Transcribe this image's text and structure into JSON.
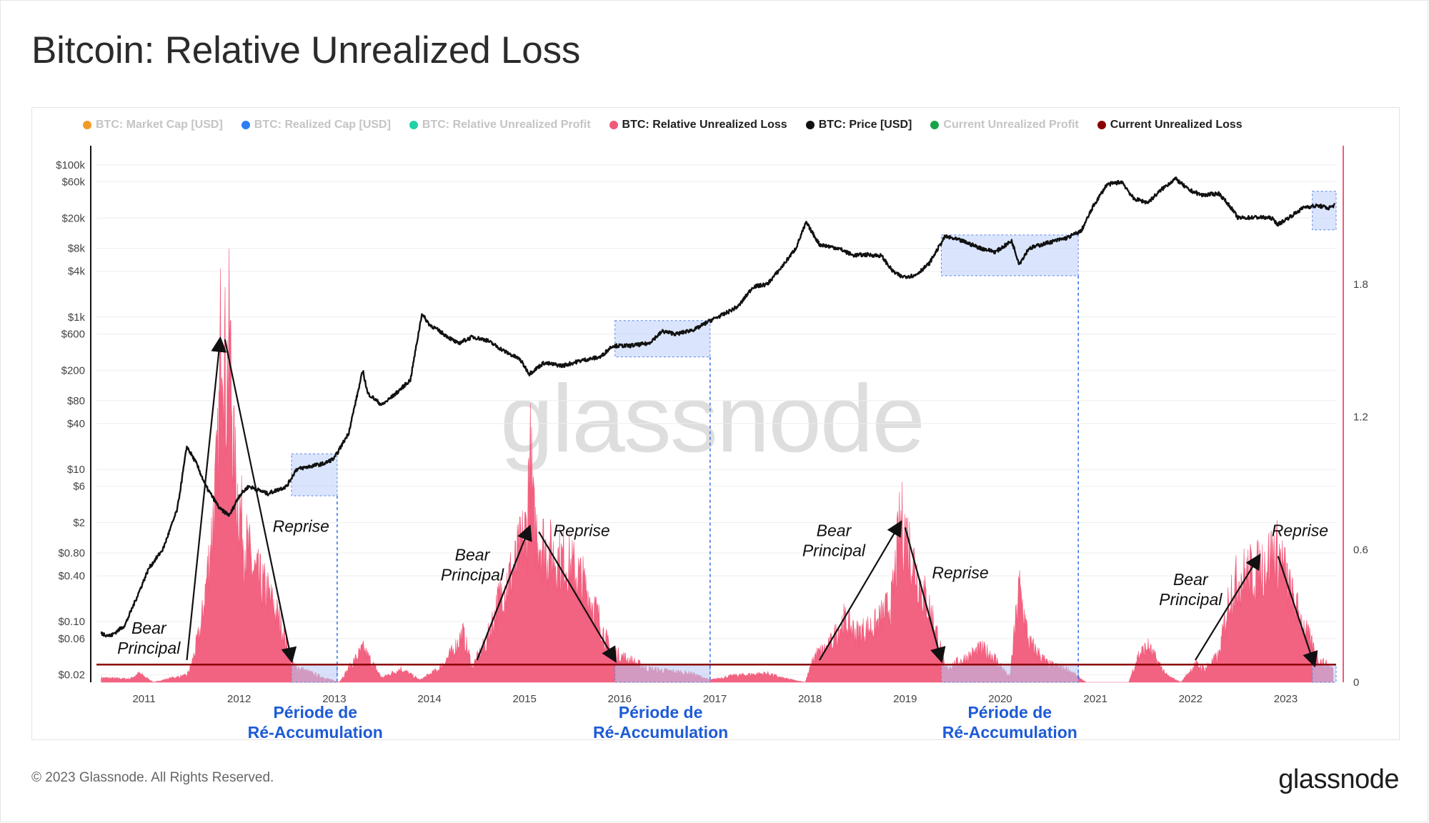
{
  "title": "Bitcoin: Relative Unrealized Loss",
  "legend": [
    {
      "label": "BTC: Market Cap [USD]",
      "color": "#f29a27",
      "active": false
    },
    {
      "label": "BTC: Realized Cap [USD]",
      "color": "#2e7cf6",
      "active": false
    },
    {
      "label": "BTC: Relative Unrealized Profit",
      "color": "#20d2a8",
      "active": false
    },
    {
      "label": "BTC: Relative Unrealized Loss",
      "color": "#f15a7a",
      "active": true
    },
    {
      "label": "BTC: Price [USD]",
      "color": "#111111",
      "active": true
    },
    {
      "label": "Current Unrealized Profit",
      "color": "#17a34a",
      "active": false
    },
    {
      "label": "Current Unrealized Loss",
      "color": "#8b0000",
      "active": true
    }
  ],
  "watermark": "glassnode",
  "footer": {
    "copyright": "© 2023 Glassnode. All Rights Reserved.",
    "logo": "glassnode"
  },
  "chart_data": {
    "type": "line",
    "title": "Bitcoin: Relative Unrealized Loss",
    "x_axis": {
      "ticks": [
        "2011",
        "2012",
        "2013",
        "2014",
        "2015",
        "2016",
        "2017",
        "2018",
        "2019",
        "2020",
        "2021",
        "2022",
        "2023"
      ],
      "range": [
        2010.5,
        2023.53
      ]
    },
    "y_left": {
      "scale": "log",
      "ticks": [
        {
          "label": "$100k",
          "value": 100000
        },
        {
          "label": "$60k",
          "value": 60000
        },
        {
          "label": "$20k",
          "value": 20000
        },
        {
          "label": "$8k",
          "value": 8000
        },
        {
          "label": "$4k",
          "value": 4000
        },
        {
          "label": "$1k",
          "value": 1000
        },
        {
          "label": "$600",
          "value": 600
        },
        {
          "label": "$200",
          "value": 200
        },
        {
          "label": "$80",
          "value": 80
        },
        {
          "label": "$40",
          "value": 40
        },
        {
          "label": "$10",
          "value": 10
        },
        {
          "label": "$6",
          "value": 6
        },
        {
          "label": "$2",
          "value": 2
        },
        {
          "label": "$0.80",
          "value": 0.8
        },
        {
          "label": "$0.40",
          "value": 0.4
        },
        {
          "label": "$0.10",
          "value": 0.1
        },
        {
          "label": "$0.06",
          "value": 0.06
        },
        {
          "label": "$0.02",
          "value": 0.02
        }
      ]
    },
    "y_right": {
      "scale": "linear",
      "ticks": [
        {
          "label": "0",
          "value": 0
        },
        {
          "label": "0.6",
          "value": 0.6
        },
        {
          "label": "1.2",
          "value": 1.2
        },
        {
          "label": "1.8",
          "value": 1.8
        }
      ],
      "range": [
        0,
        2.4
      ]
    },
    "series": [
      {
        "name": "BTC: Price [USD]",
        "axis": "left",
        "color": "#111111",
        "points": [
          [
            2010.55,
            0.07
          ],
          [
            2010.65,
            0.065
          ],
          [
            2010.8,
            0.09
          ],
          [
            2010.95,
            0.25
          ],
          [
            2011.05,
            0.5
          ],
          [
            2011.2,
            0.9
          ],
          [
            2011.35,
            3
          ],
          [
            2011.45,
            20
          ],
          [
            2011.55,
            12
          ],
          [
            2011.65,
            6
          ],
          [
            2011.8,
            3
          ],
          [
            2011.9,
            2.5
          ],
          [
            2012.0,
            4.5
          ],
          [
            2012.1,
            6
          ],
          [
            2012.3,
            4.8
          ],
          [
            2012.5,
            6
          ],
          [
            2012.6,
            10
          ],
          [
            2012.75,
            11
          ],
          [
            2012.9,
            12
          ],
          [
            2013.0,
            14
          ],
          [
            2013.15,
            30
          ],
          [
            2013.3,
            200
          ],
          [
            2013.35,
            100
          ],
          [
            2013.5,
            70
          ],
          [
            2013.65,
            100
          ],
          [
            2013.8,
            150
          ],
          [
            2013.92,
            1100
          ],
          [
            2014.0,
            800
          ],
          [
            2014.15,
            600
          ],
          [
            2014.3,
            450
          ],
          [
            2014.45,
            550
          ],
          [
            2014.6,
            500
          ],
          [
            2014.8,
            350
          ],
          [
            2014.95,
            280
          ],
          [
            2015.05,
            180
          ],
          [
            2015.2,
            250
          ],
          [
            2015.4,
            230
          ],
          [
            2015.6,
            270
          ],
          [
            2015.8,
            300
          ],
          [
            2015.92,
            420
          ],
          [
            2016.1,
            420
          ],
          [
            2016.3,
            450
          ],
          [
            2016.45,
            650
          ],
          [
            2016.6,
            600
          ],
          [
            2016.8,
            700
          ],
          [
            2016.95,
            900
          ],
          [
            2017.1,
            1100
          ],
          [
            2017.25,
            1400
          ],
          [
            2017.4,
            2500
          ],
          [
            2017.55,
            2700
          ],
          [
            2017.7,
            4500
          ],
          [
            2017.85,
            8000
          ],
          [
            2017.96,
            17500
          ],
          [
            2018.1,
            9000
          ],
          [
            2018.3,
            8000
          ],
          [
            2018.45,
            6500
          ],
          [
            2018.6,
            6600
          ],
          [
            2018.75,
            6400
          ],
          [
            2018.87,
            4000
          ],
          [
            2018.96,
            3400
          ],
          [
            2019.1,
            3500
          ],
          [
            2019.25,
            5000
          ],
          [
            2019.42,
            11500
          ],
          [
            2019.6,
            10000
          ],
          [
            2019.8,
            8000
          ],
          [
            2019.95,
            7200
          ],
          [
            2020.12,
            10000
          ],
          [
            2020.2,
            5000
          ],
          [
            2020.3,
            8000
          ],
          [
            2020.5,
            9500
          ],
          [
            2020.7,
            11000
          ],
          [
            2020.85,
            13500
          ],
          [
            2020.98,
            29000
          ],
          [
            2021.12,
            55000
          ],
          [
            2021.28,
            60000
          ],
          [
            2021.4,
            36000
          ],
          [
            2021.55,
            32000
          ],
          [
            2021.7,
            48000
          ],
          [
            2021.84,
            66000
          ],
          [
            2021.98,
            47000
          ],
          [
            2022.12,
            40000
          ],
          [
            2022.3,
            42000
          ],
          [
            2022.42,
            28000
          ],
          [
            2022.5,
            20000
          ],
          [
            2022.7,
            20500
          ],
          [
            2022.85,
            20000
          ],
          [
            2022.92,
            16500
          ],
          [
            2023.05,
            21000
          ],
          [
            2023.2,
            28000
          ],
          [
            2023.35,
            29000
          ],
          [
            2023.45,
            27000
          ],
          [
            2023.52,
            30000
          ]
        ]
      },
      {
        "name": "BTC: Relative Unrealized Loss",
        "axis": "right",
        "color": "#f15a7a",
        "points": [
          [
            2010.55,
            0.02
          ],
          [
            2010.85,
            0.015
          ],
          [
            2010.95,
            0.04
          ],
          [
            2011.1,
            0.0
          ],
          [
            2011.3,
            0.02
          ],
          [
            2011.45,
            0.03
          ],
          [
            2011.5,
            0.08
          ],
          [
            2011.6,
            0.25
          ],
          [
            2011.7,
            0.62
          ],
          [
            2011.78,
            1.0
          ],
          [
            2011.82,
            1.85
          ],
          [
            2011.86,
            1.3
          ],
          [
            2011.9,
            1.55
          ],
          [
            2011.95,
            0.95
          ],
          [
            2012.05,
            0.65
          ],
          [
            2012.15,
            0.5
          ],
          [
            2012.3,
            0.4
          ],
          [
            2012.45,
            0.25
          ],
          [
            2012.55,
            0.08
          ],
          [
            2012.7,
            0.05
          ],
          [
            2012.9,
            0.02
          ],
          [
            2013.05,
            0.0
          ],
          [
            2013.3,
            0.15
          ],
          [
            2013.5,
            0.02
          ],
          [
            2013.7,
            0.06
          ],
          [
            2013.9,
            0.01
          ],
          [
            2014.1,
            0.06
          ],
          [
            2014.25,
            0.14
          ],
          [
            2014.35,
            0.22
          ],
          [
            2014.45,
            0.07
          ],
          [
            2014.6,
            0.18
          ],
          [
            2014.75,
            0.4
          ],
          [
            2014.9,
            0.52
          ],
          [
            2015.03,
            0.7
          ],
          [
            2015.05,
            1.1
          ],
          [
            2015.1,
            0.7
          ],
          [
            2015.25,
            0.58
          ],
          [
            2015.45,
            0.54
          ],
          [
            2015.6,
            0.46
          ],
          [
            2015.75,
            0.32
          ],
          [
            2015.9,
            0.14
          ],
          [
            2016.1,
            0.1
          ],
          [
            2016.3,
            0.06
          ],
          [
            2016.5,
            0.05
          ],
          [
            2016.75,
            0.04
          ],
          [
            2016.95,
            0.01
          ],
          [
            2017.2,
            0.03
          ],
          [
            2017.55,
            0.04
          ],
          [
            2017.7,
            0.02
          ],
          [
            2017.95,
            0.0
          ],
          [
            2018.05,
            0.12
          ],
          [
            2018.2,
            0.16
          ],
          [
            2018.35,
            0.28
          ],
          [
            2018.5,
            0.22
          ],
          [
            2018.7,
            0.26
          ],
          [
            2018.86,
            0.36
          ],
          [
            2018.95,
            0.72
          ],
          [
            2019.0,
            0.68
          ],
          [
            2019.15,
            0.45
          ],
          [
            2019.3,
            0.28
          ],
          [
            2019.42,
            0.06
          ],
          [
            2019.6,
            0.1
          ],
          [
            2019.8,
            0.15
          ],
          [
            2019.92,
            0.12
          ],
          [
            2020.1,
            0.02
          ],
          [
            2020.2,
            0.43
          ],
          [
            2020.3,
            0.18
          ],
          [
            2020.5,
            0.08
          ],
          [
            2020.7,
            0.06
          ],
          [
            2020.9,
            0.0
          ],
          [
            2021.35,
            0.0
          ],
          [
            2021.45,
            0.12
          ],
          [
            2021.55,
            0.16
          ],
          [
            2021.75,
            0.03
          ],
          [
            2021.9,
            0.0
          ],
          [
            2022.05,
            0.08
          ],
          [
            2022.15,
            0.06
          ],
          [
            2022.3,
            0.12
          ],
          [
            2022.42,
            0.42
          ],
          [
            2022.55,
            0.48
          ],
          [
            2022.7,
            0.5
          ],
          [
            2022.88,
            0.58
          ],
          [
            2022.95,
            0.56
          ],
          [
            2023.05,
            0.4
          ],
          [
            2023.2,
            0.24
          ],
          [
            2023.35,
            0.1
          ],
          [
            2023.5,
            0.06
          ]
        ]
      },
      {
        "name": "Current Unrealized Loss",
        "axis": "right",
        "color": "#8b0000",
        "points": [
          [
            2010.5,
            0.08
          ],
          [
            2023.53,
            0.08
          ]
        ]
      }
    ],
    "highlight_regions": [
      {
        "x": [
          2012.55,
          2013.03
        ],
        "y_price": [
          4.5,
          16
        ]
      },
      {
        "x": [
          2015.95,
          2016.95
        ],
        "y_price": [
          300,
          900
        ]
      },
      {
        "x": [
          2019.38,
          2020.82
        ],
        "y_price": [
          3500,
          12000
        ]
      },
      {
        "x": [
          2023.28,
          2023.53
        ],
        "y_price": [
          14000,
          45000
        ]
      }
    ],
    "dashed_lines": [
      2013.03,
      2016.95,
      2020.82
    ],
    "annotations": [
      {
        "text": "Bear Principal",
        "x": 2011.05,
        "rul": 0.22,
        "arrow": [
          [
            2011.45,
            0.1
          ],
          [
            2011.8,
            1.55
          ]
        ]
      },
      {
        "text": "Reprise",
        "x": 2012.65,
        "rul": 0.68,
        "arrow": [
          [
            2011.85,
            1.55
          ],
          [
            2012.55,
            0.1
          ]
        ]
      },
      {
        "text": "Bear Principal",
        "x": 2014.45,
        "rul": 0.55,
        "arrow": [
          [
            2014.5,
            0.1
          ],
          [
            2015.05,
            0.7
          ]
        ]
      },
      {
        "text": "Reprise",
        "x": 2015.6,
        "rul": 0.66,
        "arrow": [
          [
            2015.15,
            0.68
          ],
          [
            2015.95,
            0.1
          ]
        ]
      },
      {
        "text": "Bear Principal",
        "x": 2018.25,
        "rul": 0.66,
        "arrow": [
          [
            2018.1,
            0.1
          ],
          [
            2018.95,
            0.72
          ]
        ]
      },
      {
        "text": "Reprise",
        "x": 2019.58,
        "rul": 0.47,
        "arrow": [
          [
            2019.0,
            0.7
          ],
          [
            2019.38,
            0.1
          ]
        ]
      },
      {
        "text": "Bear Principal",
        "x": 2022.0,
        "rul": 0.44,
        "arrow": [
          [
            2022.05,
            0.1
          ],
          [
            2022.72,
            0.57
          ]
        ]
      },
      {
        "text": "Reprise",
        "x": 2023.15,
        "rul": 0.66,
        "arrow": [
          [
            2022.92,
            0.57
          ],
          [
            2023.3,
            0.08
          ]
        ]
      }
    ],
    "region_labels": [
      {
        "text": "Période de Ré-Accumulation",
        "x": 2012.8
      },
      {
        "text": "Période de Ré-Accumulation",
        "x": 2016.43
      },
      {
        "text": "Période de Ré-Accumulation",
        "x": 2020.1
      }
    ]
  }
}
